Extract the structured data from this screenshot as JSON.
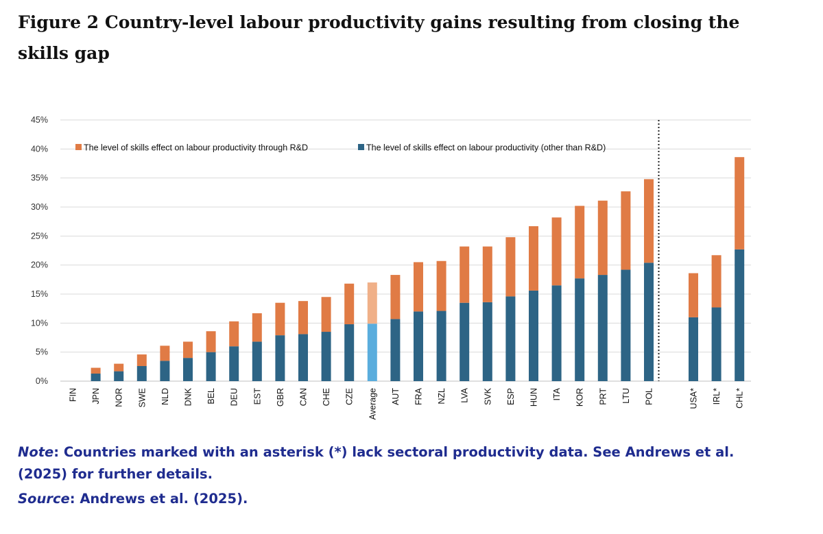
{
  "figure": {
    "label": "Figure 2",
    "title": "Country-level labour productivity gains resulting from closing the skills gap"
  },
  "note": {
    "note_label": "Note",
    "note_text": ": Countries marked with an asterisk (*) lack sectoral productivity data. See Andrews et al. (2025) for further details.",
    "source_label": "Source",
    "source_text": ": Andrews et al. (2025)."
  },
  "colors": {
    "orange": "#e07b45",
    "blue": "#2d6485",
    "average_orange": "#f0b088",
    "average_blue": "#5aaddd",
    "note_text": "#1f2c8f"
  },
  "chart_data": {
    "type": "bar",
    "stacked": true,
    "categories": [
      "FIN",
      "JPN",
      "NOR",
      "SWE",
      "NLD",
      "DNK",
      "BEL",
      "DEU",
      "EST",
      "GBR",
      "CAN",
      "CHE",
      "CZE",
      "Average",
      "AUT",
      "FRA",
      "NZL",
      "LVA",
      "SVK",
      "ESP",
      "HUN",
      "ITA",
      "KOR",
      "PRT",
      "LTU",
      "POL",
      "USA*",
      "IRL*",
      "CHL*"
    ],
    "series": [
      {
        "name": "The level of skills effect on labour productivity (other than R&D)",
        "color": "#2d6485",
        "values": [
          0,
          1.3,
          1.7,
          2.6,
          3.5,
          4.0,
          5.0,
          6.0,
          6.8,
          7.9,
          8.1,
          8.5,
          9.8,
          9.9,
          10.7,
          12.0,
          12.1,
          13.5,
          13.6,
          14.6,
          15.6,
          16.5,
          17.7,
          18.3,
          19.2,
          20.4,
          11.0,
          12.7,
          22.7
        ]
      },
      {
        "name": "The level of skills effect on labour productivity through R&D",
        "color": "#e07b45",
        "values": [
          0,
          1.0,
          1.3,
          2.0,
          2.6,
          2.8,
          3.6,
          4.3,
          4.9,
          5.6,
          5.7,
          6.0,
          7.0,
          7.1,
          7.6,
          8.5,
          8.6,
          9.7,
          9.6,
          10.2,
          11.1,
          11.7,
          12.5,
          12.8,
          13.5,
          14.4,
          7.6,
          9.0,
          15.9
        ]
      }
    ],
    "highlight_category": "Average",
    "ylim": [
      0,
      45
    ],
    "yticks": [
      0,
      5,
      10,
      15,
      20,
      25,
      30,
      35,
      40,
      45
    ],
    "ytick_suffix": "%",
    "grid": true,
    "divider_after": "POL",
    "legend_position": "top",
    "legend": [
      {
        "label": "The level of skills effect on labour productivity through R&D",
        "color": "#e07b45"
      },
      {
        "label": "The level of skills effect on labour productivity (other than R&D)",
        "color": "#2d6485"
      }
    ]
  }
}
